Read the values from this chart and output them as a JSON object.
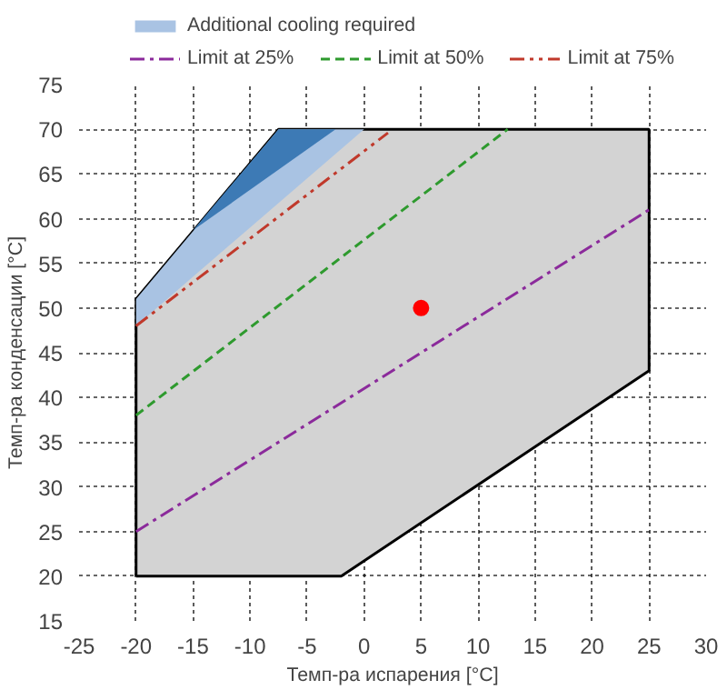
{
  "chart_data": {
    "type": "line",
    "xlabel": "Темп-ра испарения [°C]",
    "ylabel": "Темп-ра конденсации [°C]",
    "xlim": [
      -25,
      30
    ],
    "ylim": [
      15,
      75
    ],
    "xticks": [
      -25,
      -20,
      -15,
      -10,
      -5,
      0,
      5,
      10,
      15,
      20,
      25,
      30
    ],
    "yticks": [
      15,
      20,
      25,
      30,
      35,
      40,
      45,
      50,
      55,
      60,
      65,
      70,
      75
    ],
    "grid": true,
    "legend": "top",
    "series": [
      {
        "type": "area",
        "color": "#d3d3d3",
        "x": [
          -20,
          -2,
          25,
          25,
          -7.5,
          -20
        ],
        "values": [
          20,
          20,
          43,
          70,
          70,
          51
        ]
      },
      {
        "type": "area",
        "name": "Additional cooling required",
        "color": "#a9c3e3",
        "x": [
          -20,
          -7.5,
          0,
          -20
        ],
        "values": [
          51,
          70,
          70,
          48
        ]
      },
      {
        "type": "area",
        "color": "#3d7ab5",
        "x": [
          -15,
          -7.5,
          -2.5,
          -15
        ],
        "values": [
          58.7,
          70,
          70,
          58.7
        ]
      },
      {
        "name": "Limit at 25%",
        "color": "#8b2a9b",
        "line_style": "dashdot",
        "x": [
          -20,
          25
        ],
        "values": [
          25,
          61
        ]
      },
      {
        "name": "Limit at 50%",
        "color": "#2e9a2e",
        "line_style": "dashed",
        "x": [
          -20,
          12.6
        ],
        "values": [
          38,
          70
        ]
      },
      {
        "name": "Limit at 75%",
        "color": "#c0392b",
        "line_style": "dashdotdot",
        "x": [
          -20,
          2.1
        ],
        "values": [
          48,
          69.6
        ]
      },
      {
        "type": "scatter",
        "color": "#ff0000",
        "marker": "circle",
        "x": [
          5
        ],
        "values": [
          50
        ]
      }
    ]
  }
}
